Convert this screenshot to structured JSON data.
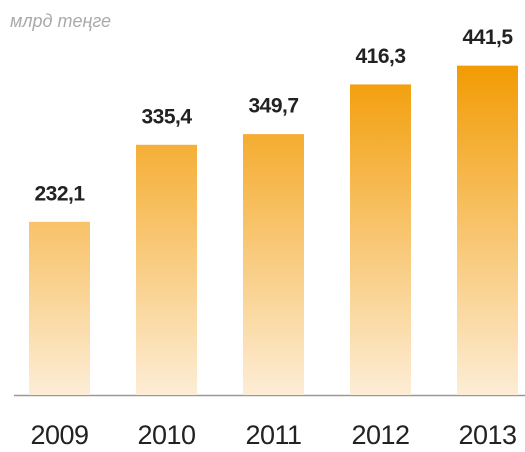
{
  "chart_data": {
    "type": "bar",
    "y_label": "млрд теңге",
    "categories": [
      "2009",
      "2010",
      "2011",
      "2012",
      "2013"
    ],
    "values": [
      232.1,
      335.4,
      349.7,
      416.3,
      441.5
    ],
    "value_labels": [
      "232,1",
      "335,4",
      "349,7",
      "416,3",
      "441,5"
    ],
    "color": "#f29a00",
    "ylim": [
      0,
      500
    ],
    "grid": false
  }
}
